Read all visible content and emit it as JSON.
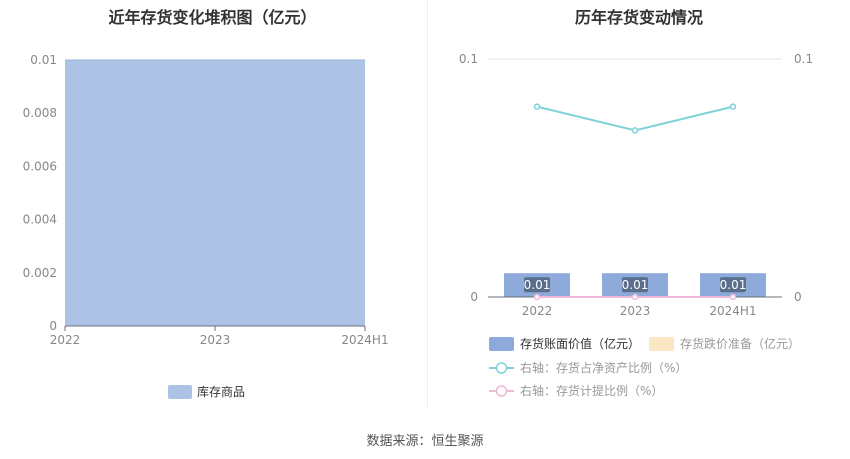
{
  "source": "数据来源：恒生聚源",
  "chart_data": [
    {
      "type": "area",
      "title": "近年存货变化堆积图（亿元）",
      "categories": [
        "2022",
        "2023",
        "2024H1"
      ],
      "y_ticks": [
        "0",
        "0.002",
        "0.004",
        "0.006",
        "0.008",
        "0.01"
      ],
      "ylim": [
        0,
        0.01
      ],
      "series": [
        {
          "name": "库存商品",
          "values": [
            0.01,
            0.01,
            0.01
          ],
          "color": "#adc3e6"
        }
      ],
      "legend_position": "bottom",
      "grid": true
    },
    {
      "type": "bar",
      "title": "历年存货变动情况",
      "categories": [
        "2022",
        "2023",
        "2024H1"
      ],
      "y_left_ticks": [
        "0",
        "0.1"
      ],
      "y_right_ticks": [
        "0",
        "0.1"
      ],
      "ylim": [
        0,
        0.1
      ],
      "series": [
        {
          "name": "存货账面价值（亿元）",
          "type": "bar",
          "axis": "left",
          "values": [
            0.01,
            0.01,
            0.01
          ],
          "labels": [
            "0.01",
            "0.01",
            "0.01"
          ],
          "color": "#8eaadb"
        },
        {
          "name": "存货跌价准备（亿元）",
          "type": "bar",
          "axis": "left",
          "values": [
            0,
            0,
            0
          ],
          "color": "#fde6c4"
        },
        {
          "name": "右轴：存货占净资产比例（%）",
          "type": "line",
          "axis": "right",
          "values": [
            0.08,
            0.07,
            0.08
          ],
          "color": "#7fd3d8"
        },
        {
          "name": "右轴：存货计提比例（%）",
          "type": "line",
          "axis": "right",
          "values": [
            0,
            0,
            0
          ],
          "color": "#f0b8d6"
        }
      ],
      "legend_position": "bottom",
      "grid": true
    }
  ]
}
